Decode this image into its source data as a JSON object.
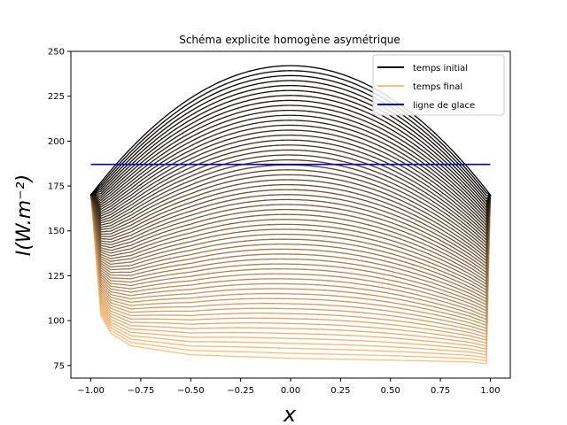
{
  "chart_data": {
    "type": "line",
    "title": "Schéma explicite homogène asymétrique",
    "xlabel": "x",
    "ylabel": "I(W.m⁻²)",
    "xlim": [
      -1.1,
      1.1
    ],
    "ylim": [
      68,
      250
    ],
    "x_ticks": [
      -1.0,
      -0.75,
      -0.5,
      -0.25,
      0.0,
      0.25,
      0.5,
      0.75,
      1.0
    ],
    "x_tick_labels": [
      "−1.00",
      "−0.75",
      "−0.50",
      "−0.25",
      "0.00",
      "0.25",
      "0.50",
      "0.75",
      "1.00"
    ],
    "y_ticks": [
      75,
      100,
      125,
      150,
      175,
      200,
      225,
      250
    ],
    "y_tick_labels": [
      "75",
      "100",
      "125",
      "150",
      "175",
      "200",
      "225",
      "250"
    ],
    "grid": false,
    "legend_position": "upper right",
    "legend": [
      {
        "label": "temps initial",
        "color": "#000000"
      },
      {
        "label": "temps final",
        "color": "#ffbe7d"
      },
      {
        "label": "ligne de glace",
        "color": "#0000cc"
      }
    ],
    "family": {
      "description": "sequence of curves from initial to final time, colormap black to light orange",
      "curve_count": 60,
      "color_start": "#000000",
      "color_end": "#ffc07a",
      "boundary_value": 170,
      "initial": {
        "peak_x": 0.0,
        "peak_y": 242,
        "edge_y": 170
      },
      "final": {
        "x": [
          -1.0,
          -0.95,
          -0.9,
          -0.8,
          -0.5,
          0.0,
          0.5,
          0.9,
          0.98,
          1.0
        ],
        "y": [
          170,
          103,
          93,
          86,
          81,
          79,
          78,
          77,
          76,
          170
        ]
      }
    },
    "series": [
      {
        "name": "ligne de glace",
        "x": [
          -1.0,
          1.0
        ],
        "y": [
          187,
          187
        ],
        "color": "#0000cc"
      }
    ]
  }
}
